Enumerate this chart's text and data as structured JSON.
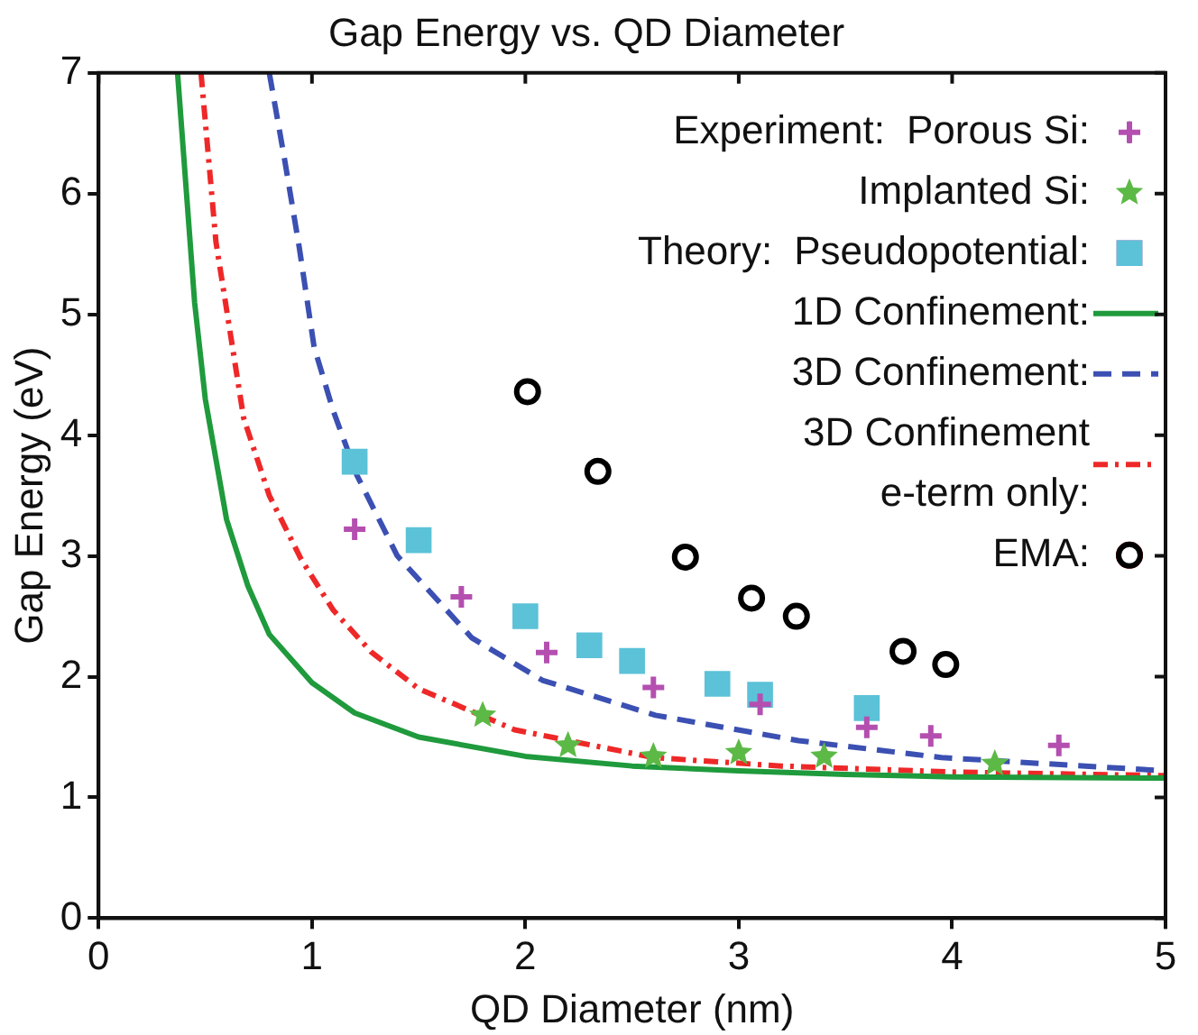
{
  "chart_data": {
    "type": "scatter",
    "title": "Gap Energy vs. QD Diameter",
    "xlabel": "QD Diameter (nm)",
    "ylabel": "Gap Energy (eV)",
    "annotations": [
      "Experiment:",
      "Theory:"
    ],
    "series": [
      {
        "name": "Porous Si:",
        "type": "scatter",
        "marker": "cross",
        "color": "#b44fb0",
        "x": [
          1.2,
          1.7,
          2.1,
          2.6,
          3.1,
          3.6,
          3.9,
          4.5
        ],
        "values": [
          3.22,
          2.66,
          2.2,
          1.91,
          1.77,
          1.58,
          1.51,
          1.43
        ]
      },
      {
        "name": "Implanted Si:",
        "type": "scatter",
        "marker": "star",
        "color": "#5cb946",
        "x": [
          1.8,
          2.2,
          2.6,
          3.0,
          3.4,
          4.2
        ],
        "values": [
          1.68,
          1.43,
          1.34,
          1.37,
          1.34,
          1.28
        ]
      },
      {
        "name": "Pseudopotential:",
        "type": "scatter",
        "marker": "square",
        "color": "#5bc2d8",
        "x": [
          1.2,
          1.5,
          2.0,
          2.3,
          2.5,
          2.9,
          3.1,
          3.6
        ],
        "values": [
          3.78,
          3.13,
          2.5,
          2.26,
          2.13,
          1.94,
          1.85,
          1.74
        ]
      },
      {
        "name": "1D Confinement:",
        "type": "line",
        "line_style": "solid",
        "marker": "none",
        "color": "#1f9a3c",
        "x": [
          0.37,
          0.45,
          0.5,
          0.6,
          0.7,
          0.8,
          1.0,
          1.2,
          1.5,
          2.0,
          2.5,
          3.0,
          3.5,
          4.0,
          5.0
        ],
        "values": [
          7,
          5.1,
          4.3,
          3.3,
          2.75,
          2.35,
          1.95,
          1.7,
          1.5,
          1.34,
          1.26,
          1.22,
          1.19,
          1.17,
          1.16
        ]
      },
      {
        "name": "3D Confinement:",
        "type": "line",
        "line_style": "dashed",
        "marker": "none",
        "color": "#3b50b2",
        "x": [
          0.8,
          0.87,
          0.94,
          1.01,
          1.1,
          1.21,
          1.4,
          1.75,
          2.08,
          2.61,
          3.28,
          3.95,
          5.0
        ],
        "values": [
          7,
          6.3,
          5.56,
          4.73,
          4.2,
          3.67,
          3.0,
          2.32,
          1.97,
          1.68,
          1.47,
          1.33,
          1.22
        ]
      },
      {
        "name": "3D Confinement\ne-term only:",
        "type": "line",
        "line_style": "dotted",
        "marker": "none",
        "color": "#ee2828",
        "x": [
          0.48,
          0.55,
          0.68,
          0.8,
          0.95,
          1.1,
          1.28,
          1.5,
          1.95,
          2.6,
          3.2,
          4.0,
          5.0
        ],
        "values": [
          7,
          5.6,
          4.14,
          3.5,
          2.97,
          2.55,
          2.2,
          1.9,
          1.56,
          1.33,
          1.26,
          1.21,
          1.18
        ]
      },
      {
        "name": "EMA:",
        "type": "scatter",
        "marker": "circle",
        "color": "#000000",
        "x": [
          2.01,
          2.34,
          2.75,
          3.06,
          3.27,
          3.77,
          3.97
        ],
        "values": [
          4.36,
          3.7,
          2.99,
          2.65,
          2.5,
          2.21,
          2.1
        ]
      }
    ],
    "xlim": [
      0,
      5
    ],
    "xticks": [
      0,
      1,
      2,
      3,
      4,
      5
    ],
    "ylim": [
      0,
      7
    ],
    "yticks": [
      0,
      1,
      2,
      3,
      4,
      5,
      6,
      7
    ],
    "grid": false,
    "legend": "top right"
  }
}
